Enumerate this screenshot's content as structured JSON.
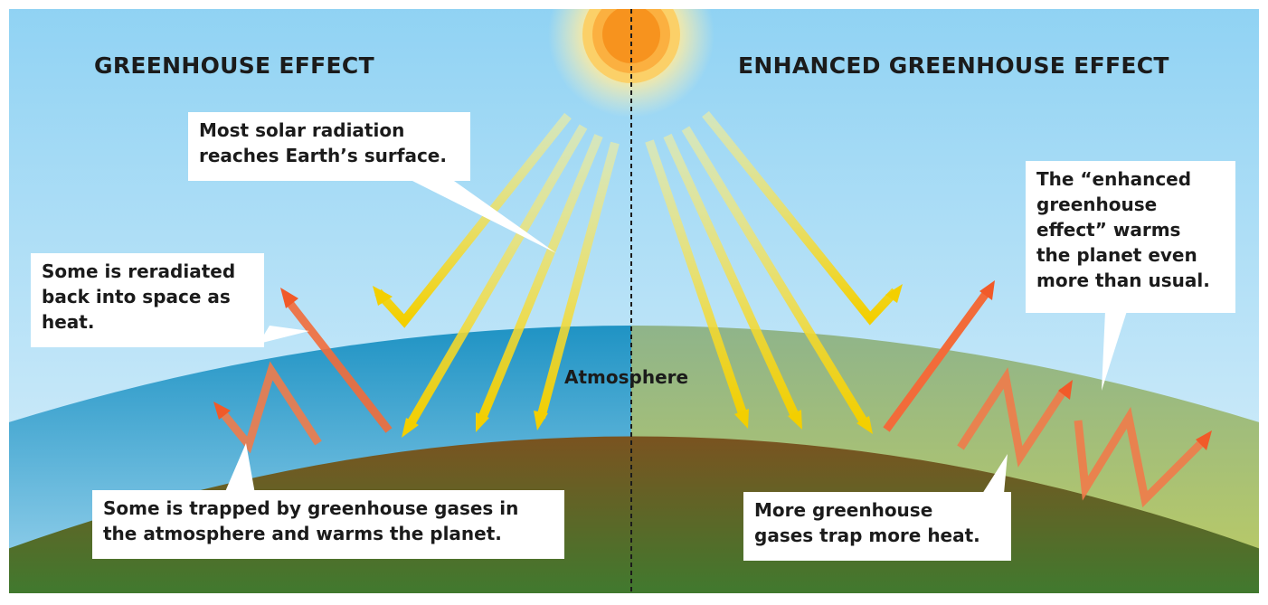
{
  "left_panel": {
    "title": "GREENHOUSE EFFECT",
    "callouts": {
      "solar": [
        "Most solar radiation",
        "reaches Earth’s surface."
      ],
      "reradiated": [
        "Some is reradiated",
        "back into space as",
        "heat."
      ],
      "trapped": [
        "Some is trapped by greenhouse gases in",
        "the atmosphere and warms the planet."
      ]
    }
  },
  "right_panel": {
    "title": "ENHANCED GREENHOUSE EFFECT",
    "callouts": {
      "enhanced": [
        "The “enhanced",
        "greenhouse",
        "effect” warms",
        "the planet even",
        "more than usual."
      ],
      "more_gases": [
        "More greenhouse",
        "gases trap more heat."
      ]
    }
  },
  "atmosphere_label": "Atmosphere",
  "colors": {
    "sky_top": "#8fd2f3",
    "sky_bottom": "#d8effb",
    "atmosphere_left": "#1f93c4",
    "atmosphere_right": "#9bbf7a",
    "earth_top": "#7a5320",
    "earth_bottom": "#3f7f30",
    "sun_core": "#f7931e",
    "sun_ring": "#fbb040",
    "solar_ray": "#f5d90a",
    "heat_arrow": "#f15a29"
  }
}
